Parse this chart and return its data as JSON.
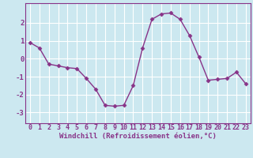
{
  "x": [
    0,
    1,
    2,
    3,
    4,
    5,
    6,
    7,
    8,
    9,
    10,
    11,
    12,
    13,
    14,
    15,
    16,
    17,
    18,
    19,
    20,
    21,
    22,
    23
  ],
  "y": [
    0.9,
    0.6,
    -0.3,
    -0.4,
    -0.5,
    -0.55,
    -1.1,
    -1.7,
    -2.6,
    -2.65,
    -2.6,
    -1.5,
    0.6,
    2.2,
    2.5,
    2.55,
    2.2,
    1.3,
    0.1,
    -1.2,
    -1.15,
    -1.1,
    -0.75,
    -1.4
  ],
  "line_color": "#883388",
  "marker": "D",
  "markersize": 2.5,
  "linewidth": 1.0,
  "bg_color": "#cce8f0",
  "grid_color": "#ffffff",
  "xlabel": "Windchill (Refroidissement éolien,°C)",
  "xlabel_fontsize": 6.5,
  "tick_fontsize": 6.0,
  "yticks": [
    -3,
    -2,
    -1,
    0,
    1,
    2
  ],
  "ylim": [
    -3.6,
    3.1
  ],
  "xlim": [
    -0.5,
    23.5
  ]
}
